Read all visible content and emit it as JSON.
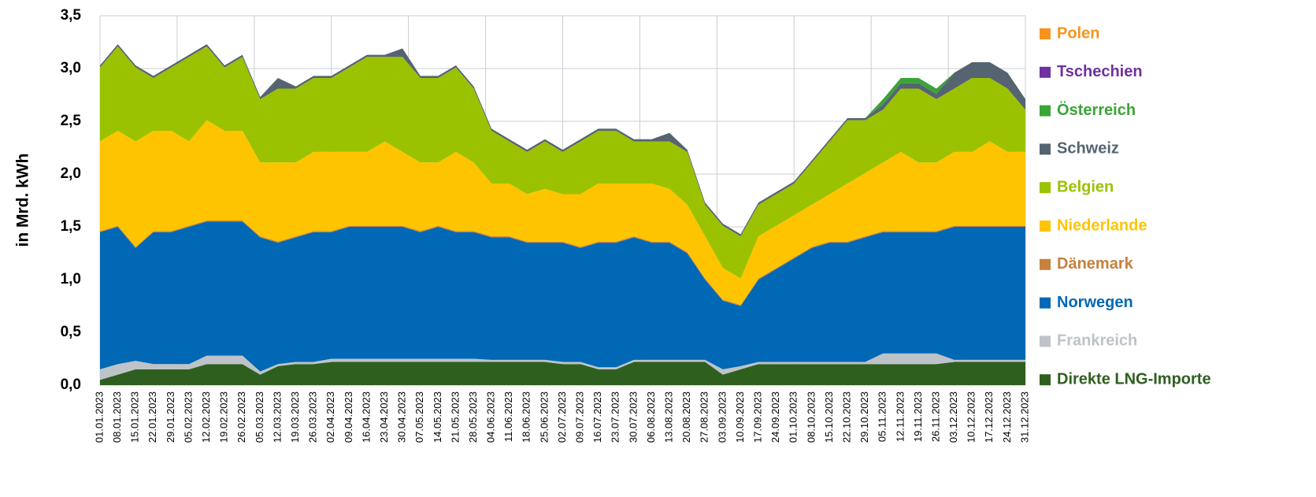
{
  "chart_data": {
    "type": "stacked_area",
    "y_label": "in Mrd. kWh",
    "categories": [
      "01.01.2023",
      "08.01.2023",
      "15.01.2023",
      "22.01.2023",
      "29.01.2023",
      "05.02.2023",
      "12.02.2023",
      "19.02.2023",
      "26.02.2023",
      "05.03.2023",
      "12.03.2023",
      "19.03.2023",
      "26.03.2023",
      "02.04.2023",
      "09.04.2023",
      "16.04.2023",
      "23.04.2023",
      "30.04.2023",
      "07.05.2023",
      "14.05.2023",
      "21.05.2023",
      "28.05.2023",
      "04.06.2023",
      "11.06.2023",
      "18.06.2023",
      "25.06.2023",
      "02.07.2023",
      "09.07.2023",
      "16.07.2023",
      "23.07.2023",
      "30.07.2023",
      "06.08.2023",
      "13.08.2023",
      "20.08.2023",
      "27.08.2023",
      "03.09.2023",
      "10.09.2023",
      "17.09.2023",
      "24.09.2023",
      "01.10.2023",
      "08.10.2023",
      "15.10.2023",
      "22.10.2023",
      "29.10.2023",
      "05.11.2023",
      "12.11.2023",
      "19.11.2023",
      "26.11.2023",
      "03.12.2023",
      "10.12.2023",
      "17.12.2023",
      "24.12.2023",
      "31.12.2023"
    ],
    "series": [
      {
        "name": "Direkte LNG-Importe",
        "color": "#2e5f1f",
        "values": [
          0.05,
          0.1,
          0.15,
          0.15,
          0.15,
          0.15,
          0.2,
          0.2,
          0.2,
          0.1,
          0.18,
          0.2,
          0.2,
          0.22,
          0.22,
          0.22,
          0.22,
          0.22,
          0.22,
          0.22,
          0.22,
          0.22,
          0.22,
          0.22,
          0.22,
          0.22,
          0.2,
          0.2,
          0.15,
          0.15,
          0.22,
          0.22,
          0.22,
          0.22,
          0.22,
          0.1,
          0.15,
          0.2,
          0.2,
          0.2,
          0.2,
          0.2,
          0.2,
          0.2,
          0.2,
          0.2,
          0.2,
          0.2,
          0.22,
          0.22,
          0.22,
          0.22,
          0.22
        ]
      },
      {
        "name": "Frankreich",
        "color": "#bdc3c8",
        "values": [
          0.1,
          0.1,
          0.08,
          0.05,
          0.05,
          0.05,
          0.08,
          0.08,
          0.08,
          0.03,
          0.02,
          0.02,
          0.02,
          0.03,
          0.03,
          0.03,
          0.03,
          0.03,
          0.03,
          0.03,
          0.03,
          0.03,
          0.02,
          0.02,
          0.02,
          0.02,
          0.02,
          0.02,
          0.02,
          0.02,
          0.02,
          0.02,
          0.02,
          0.02,
          0.02,
          0.05,
          0.03,
          0.02,
          0.02,
          0.02,
          0.02,
          0.02,
          0.02,
          0.02,
          0.1,
          0.1,
          0.1,
          0.1,
          0.02,
          0.02,
          0.02,
          0.02,
          0.02
        ]
      },
      {
        "name": "Norwegen",
        "color": "#0068b4",
        "values": [
          1.3,
          1.3,
          1.07,
          1.25,
          1.25,
          1.3,
          1.27,
          1.27,
          1.27,
          1.27,
          1.15,
          1.18,
          1.23,
          1.2,
          1.25,
          1.25,
          1.25,
          1.25,
          1.2,
          1.25,
          1.2,
          1.2,
          1.16,
          1.16,
          1.11,
          1.11,
          1.13,
          1.08,
          1.18,
          1.18,
          1.16,
          1.11,
          1.11,
          1.01,
          0.76,
          0.65,
          0.57,
          0.78,
          0.88,
          0.98,
          1.08,
          1.13,
          1.13,
          1.18,
          1.15,
          1.15,
          1.15,
          1.15,
          1.26,
          1.26,
          1.26,
          1.26,
          1.26
        ]
      },
      {
        "name": "Dänemark",
        "color": "#c8803e",
        "values": [
          0.01,
          0.01,
          0.01,
          0.01,
          0.01,
          0.01,
          0.01,
          0.01,
          0.01,
          0.01,
          0.01,
          0.01,
          0.01,
          0.01,
          0.01,
          0.01,
          0.01,
          0.01,
          0.01,
          0.01,
          0.01,
          0.01,
          0.01,
          0.01,
          0.01,
          0.01,
          0.01,
          0.01,
          0.01,
          0.01,
          0.01,
          0.01,
          0.01,
          0.01,
          0.01,
          0.01,
          0.01,
          0.01,
          0.01,
          0.01,
          0.01,
          0.01,
          0.01,
          0.01,
          0.01,
          0.01,
          0.01,
          0.01,
          0.01,
          0.01,
          0.01,
          0.01,
          0.01
        ]
      },
      {
        "name": "Niederlande",
        "color": "#ffc400",
        "values": [
          0.85,
          0.9,
          1.0,
          0.95,
          0.95,
          0.8,
          0.95,
          0.85,
          0.85,
          0.7,
          0.75,
          0.7,
          0.75,
          0.75,
          0.7,
          0.7,
          0.8,
          0.7,
          0.65,
          0.6,
          0.75,
          0.65,
          0.5,
          0.5,
          0.45,
          0.5,
          0.45,
          0.5,
          0.55,
          0.55,
          0.5,
          0.55,
          0.5,
          0.45,
          0.4,
          0.3,
          0.25,
          0.4,
          0.4,
          0.4,
          0.4,
          0.45,
          0.55,
          0.6,
          0.65,
          0.75,
          0.65,
          0.65,
          0.7,
          0.7,
          0.8,
          0.7,
          0.7
        ]
      },
      {
        "name": "Belgien",
        "color": "#9bc200",
        "values": [
          0.7,
          0.8,
          0.7,
          0.5,
          0.6,
          0.8,
          0.7,
          0.6,
          0.7,
          0.6,
          0.7,
          0.7,
          0.7,
          0.7,
          0.8,
          0.9,
          0.8,
          0.9,
          0.8,
          0.8,
          0.8,
          0.7,
          0.5,
          0.4,
          0.4,
          0.45,
          0.4,
          0.5,
          0.5,
          0.5,
          0.4,
          0.4,
          0.45,
          0.5,
          0.3,
          0.4,
          0.4,
          0.3,
          0.3,
          0.3,
          0.4,
          0.5,
          0.6,
          0.5,
          0.5,
          0.6,
          0.7,
          0.6,
          0.6,
          0.7,
          0.6,
          0.6,
          0.4
        ]
      },
      {
        "name": "Schweiz",
        "color": "#566371",
        "values": [
          0.02,
          0.02,
          0.02,
          0.02,
          0.02,
          0.02,
          0.02,
          0.02,
          0.02,
          0.02,
          0.1,
          0.02,
          0.02,
          0.02,
          0.02,
          0.02,
          0.02,
          0.08,
          0.02,
          0.02,
          0.02,
          0.02,
          0.02,
          0.02,
          0.02,
          0.02,
          0.02,
          0.02,
          0.02,
          0.02,
          0.02,
          0.02,
          0.08,
          0.02,
          0.02,
          0.02,
          0.02,
          0.02,
          0.02,
          0.02,
          0.02,
          0.02,
          0.02,
          0.02,
          0.05,
          0.05,
          0.05,
          0.05,
          0.15,
          0.15,
          0.15,
          0.15,
          0.1
        ]
      },
      {
        "name": "Österreich",
        "color": "#3aa437",
        "values": [
          0,
          0,
          0,
          0,
          0,
          0,
          0,
          0,
          0,
          0,
          0,
          0,
          0,
          0,
          0,
          0,
          0,
          0,
          0,
          0,
          0,
          0,
          0,
          0,
          0,
          0,
          0,
          0,
          0,
          0,
          0,
          0,
          0,
          0,
          0,
          0,
          0,
          0,
          0,
          0,
          0,
          0,
          0,
          0,
          0.05,
          0.05,
          0.05,
          0.05,
          0,
          0,
          0,
          0,
          0
        ]
      },
      {
        "name": "Tschechien",
        "color": "#7030a0",
        "values": [
          0,
          0,
          0,
          0,
          0,
          0,
          0,
          0,
          0,
          0,
          0,
          0,
          0,
          0,
          0,
          0,
          0,
          0,
          0,
          0,
          0,
          0,
          0,
          0,
          0,
          0,
          0,
          0,
          0,
          0,
          0,
          0,
          0,
          0,
          0,
          0,
          0,
          0,
          0,
          0,
          0,
          0,
          0,
          0,
          0,
          0,
          0,
          0,
          0,
          0,
          0,
          0,
          0
        ]
      },
      {
        "name": "Polen",
        "color": "#f7931e",
        "values": [
          0,
          0,
          0,
          0,
          0,
          0,
          0,
          0,
          0,
          0,
          0,
          0,
          0,
          0,
          0,
          0,
          0,
          0,
          0,
          0,
          0,
          0,
          0,
          0,
          0,
          0,
          0,
          0,
          0,
          0,
          0,
          0,
          0,
          0,
          0,
          0,
          0,
          0,
          0,
          0,
          0,
          0,
          0,
          0,
          0,
          0,
          0,
          0,
          0,
          0,
          0,
          0,
          0
        ]
      }
    ],
    "ylim": [
      0,
      3.5
    ],
    "yticks": [
      {
        "value": 0,
        "label": "0,0"
      },
      {
        "value": 0.5,
        "label": "0,5"
      },
      {
        "value": 1,
        "label": "1,0"
      },
      {
        "value": 1.5,
        "label": "1,5"
      },
      {
        "value": 2,
        "label": "2,0"
      },
      {
        "value": 2.5,
        "label": "2,5"
      },
      {
        "value": 3,
        "label": "3,0"
      },
      {
        "value": 3.5,
        "label": "3,5"
      }
    ],
    "grid": true,
    "legend": "right"
  }
}
